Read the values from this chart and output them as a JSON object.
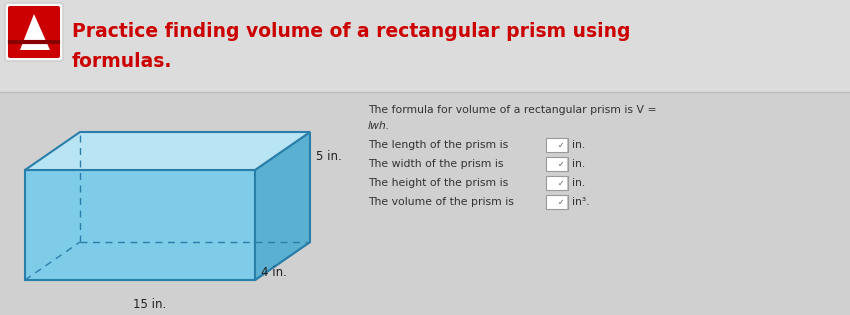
{
  "title_line1": "Practice finding volume of a rectangular prism using",
  "title_line2": "formulas.",
  "title_color": "#cc0000",
  "title_fontsize": 13.5,
  "title_bg_color": "#dcdcdc",
  "body_bg_color": "#d0d0d0",
  "prism_front_color": "#7ecce8",
  "prism_top_color": "#b8e4f4",
  "prism_right_color": "#5ab0d0",
  "prism_edge_color": "#2a7faa",
  "dim_15": "15 in.",
  "dim_5": "5 in.",
  "dim_4": "4 in.",
  "formula_text1": "The formula for volume of a rectangular prism is V =",
  "formula_text2": "lwh.",
  "line1": "The length of the prism is",
  "line2": "The width of the prism is",
  "line3": "The height of the prism is",
  "line4": "The volume of the prism is",
  "unit1": "in.",
  "unit2": "in.",
  "unit3": "in.",
  "unit4": "in³.",
  "text_color": "#333333",
  "text_fontsize": 8.0
}
